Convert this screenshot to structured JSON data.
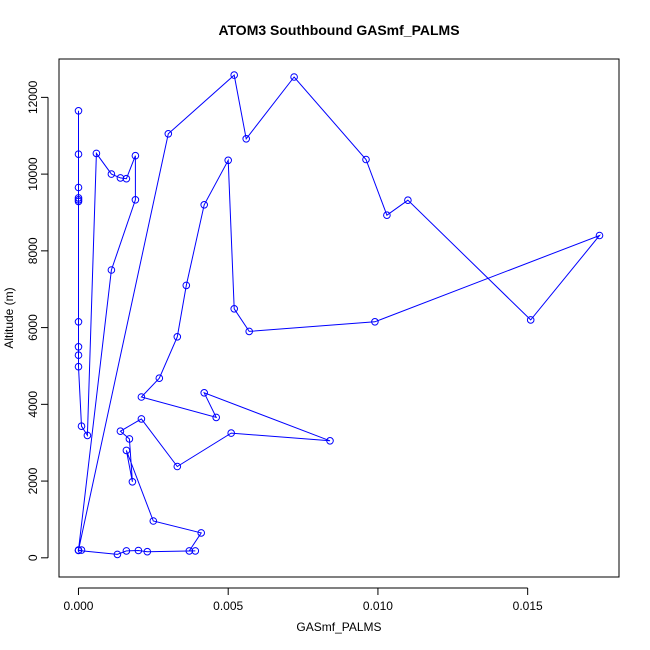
{
  "chart_data": {
    "type": "line",
    "title": "ATOM3 Southbound GASmf_PALMS",
    "xlabel": "GASmf_PALMS",
    "ylabel": "Altitude (m)",
    "xlim": [
      -0.00065,
      0.01805
    ],
    "ylim": [
      -500,
      13000
    ],
    "xticks": [
      0.0,
      0.005,
      0.01,
      0.015
    ],
    "xtick_labels": [
      "0.000",
      "0.005",
      "0.010",
      "0.015"
    ],
    "yticks": [
      0,
      2000,
      4000,
      6000,
      8000,
      10000,
      12000
    ],
    "ytick_labels": [
      "0",
      "2000",
      "4000",
      "6000",
      "8000",
      "10000",
      "12000"
    ],
    "grid": false,
    "legend": "none",
    "marker": "open-circle",
    "color": "#0000ff",
    "series": [
      {
        "x": [
          0.0,
          0.0,
          0.0,
          0.0,
          0.0,
          0.0,
          0.0,
          0.0,
          0.0,
          0.0,
          0.0001,
          0.0003,
          0.0006,
          0.0011,
          0.0014,
          0.0016,
          0.0019,
          0.0019,
          0.0011,
          0.0,
          0.003,
          0.0052,
          0.0056,
          0.0072,
          0.0096,
          0.0103,
          0.011,
          0.0151,
          0.0174,
          0.0099,
          0.0057,
          0.0052,
          0.005,
          0.0042,
          0.0036,
          0.0033,
          0.0027,
          0.0021,
          0.0046,
          0.0042,
          0.0084,
          0.0051,
          0.0033,
          0.0021,
          0.0014,
          0.0017,
          0.0018,
          0.0016,
          0.0025,
          0.0041,
          0.0037,
          0.0039,
          0.0023,
          0.002,
          0.0016,
          0.0013,
          0.0,
          0.0001
        ],
        "y": [
          11650,
          10520,
          9650,
          9380,
          9330,
          9290,
          6150,
          5500,
          5280,
          4980,
          3430,
          3190,
          10540,
          10000,
          9900,
          9880,
          10480,
          9330,
          7500,
          200,
          11050,
          12580,
          10920,
          12530,
          10380,
          8930,
          9320,
          6200,
          8400,
          6150,
          5900,
          6490,
          10360,
          9200,
          7100,
          5760,
          4680,
          4190,
          3660,
          4300,
          3050,
          3250,
          2380,
          3620,
          3300,
          3100,
          1980,
          2800,
          960,
          650,
          180,
          180,
          160,
          190,
          180,
          90,
          190,
          200
        ]
      }
    ]
  }
}
